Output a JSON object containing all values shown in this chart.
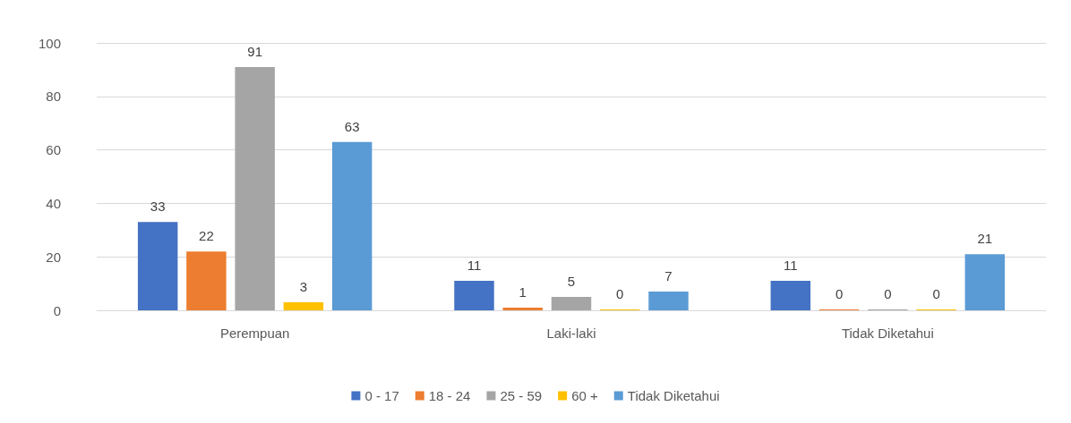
{
  "chart_data": {
    "type": "bar",
    "categories": [
      "Perempuan",
      "Laki-laki",
      "Tidak Diketahui"
    ],
    "series": [
      {
        "name": "0 - 17",
        "color": "#4472c4",
        "values": [
          33,
          11,
          11
        ]
      },
      {
        "name": "18 - 24",
        "color": "#ed7d31",
        "values": [
          22,
          1,
          0
        ]
      },
      {
        "name": "25 - 59",
        "color": "#a5a5a5",
        "values": [
          91,
          5,
          0
        ]
      },
      {
        "name": "60 +",
        "color": "#ffc000",
        "values": [
          3,
          0,
          0
        ]
      },
      {
        "name": "Tidak Diketahui",
        "color": "#5b9bd5",
        "values": [
          63,
          7,
          21
        ]
      }
    ],
    "ylim": [
      0,
      100
    ],
    "yticks": [
      0,
      20,
      40,
      60,
      80,
      100
    ],
    "grid": "y",
    "legend": "bottom",
    "data_labels": true
  }
}
